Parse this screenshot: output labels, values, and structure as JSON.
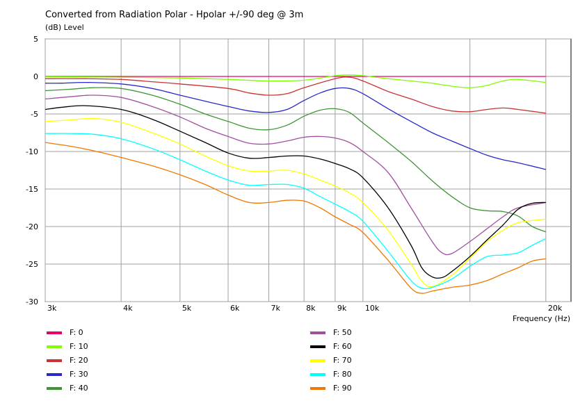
{
  "chart_data": {
    "type": "line",
    "title": "Converted from Radiation Polar - Hpolar +/-90 deg @ 3m",
    "ylabel": "(dB)  Level",
    "xlabel": "Frequency  (Hz)",
    "xscale": "log",
    "xlim": [
      3000,
      22000
    ],
    "ylim": [
      -30,
      5
    ],
    "grid": true,
    "legend_position": "bottom",
    "x_ticks": [
      {
        "value": 3000,
        "label": "3k"
      },
      {
        "value": 4000,
        "label": "4k"
      },
      {
        "value": 5000,
        "label": "5k"
      },
      {
        "value": 6000,
        "label": "6k"
      },
      {
        "value": 7000,
        "label": "7k"
      },
      {
        "value": 8000,
        "label": "8k"
      },
      {
        "value": 9000,
        "label": "9k"
      },
      {
        "value": 10000,
        "label": "10k"
      },
      {
        "value": 20000,
        "label": "20k"
      }
    ],
    "y_ticks": [
      {
        "value": 5,
        "label": "5"
      },
      {
        "value": 0,
        "label": "0"
      },
      {
        "value": -5,
        "label": "-5"
      },
      {
        "value": -10,
        "label": "-10"
      },
      {
        "value": -15,
        "label": "-15"
      },
      {
        "value": -20,
        "label": "-20"
      },
      {
        "value": -25,
        "label": "-25"
      },
      {
        "value": -30,
        "label": "-30"
      }
    ],
    "x_minor_gridlines": [
      15000
    ],
    "series": [
      {
        "name": "F: 0",
        "color": "#e6006e",
        "points": [
          [
            3000,
            0
          ],
          [
            20000,
            0
          ]
        ]
      },
      {
        "name": "F: 10",
        "color": "#80ff00",
        "points": [
          [
            3000,
            -0.05
          ],
          [
            4000,
            -0.1
          ],
          [
            5000,
            -0.2
          ],
          [
            6000,
            -0.4
          ],
          [
            7000,
            -0.6
          ],
          [
            8000,
            -0.5
          ],
          [
            9000,
            0.1
          ],
          [
            9500,
            0.2
          ],
          [
            10000,
            0.1
          ],
          [
            11000,
            -0.3
          ],
          [
            12000,
            -0.6
          ],
          [
            13000,
            -0.9
          ],
          [
            14000,
            -1.3
          ],
          [
            15000,
            -1.5
          ],
          [
            16000,
            -1.2
          ],
          [
            17000,
            -0.6
          ],
          [
            18000,
            -0.4
          ],
          [
            20000,
            -0.8
          ]
        ]
      },
      {
        "name": "F: 20",
        "color": "#c83232",
        "points": [
          [
            3000,
            -0.3
          ],
          [
            3500,
            -0.3
          ],
          [
            4000,
            -0.4
          ],
          [
            4500,
            -0.7
          ],
          [
            5000,
            -1.0
          ],
          [
            6000,
            -1.6
          ],
          [
            6500,
            -2.2
          ],
          [
            7000,
            -2.5
          ],
          [
            7500,
            -2.3
          ],
          [
            8000,
            -1.5
          ],
          [
            9000,
            -0.3
          ],
          [
            9500,
            -0.1
          ],
          [
            10000,
            -0.6
          ],
          [
            11000,
            -2.0
          ],
          [
            12000,
            -3.0
          ],
          [
            13000,
            -4.0
          ],
          [
            14000,
            -4.6
          ],
          [
            15000,
            -4.7
          ],
          [
            16000,
            -4.4
          ],
          [
            17000,
            -4.2
          ],
          [
            18000,
            -4.4
          ],
          [
            20000,
            -4.9
          ]
        ]
      },
      {
        "name": "F: 30",
        "color": "#2828c8",
        "points": [
          [
            3000,
            -0.9
          ],
          [
            3200,
            -0.9
          ],
          [
            3500,
            -0.8
          ],
          [
            4000,
            -1.0
          ],
          [
            4500,
            -1.6
          ],
          [
            5000,
            -2.5
          ],
          [
            5500,
            -3.3
          ],
          [
            6000,
            -4.0
          ],
          [
            6500,
            -4.6
          ],
          [
            7000,
            -4.8
          ],
          [
            7500,
            -4.4
          ],
          [
            8000,
            -3.2
          ],
          [
            8500,
            -2.2
          ],
          [
            9000,
            -1.6
          ],
          [
            9500,
            -1.6
          ],
          [
            10000,
            -2.3
          ],
          [
            11000,
            -4.3
          ],
          [
            12000,
            -6.0
          ],
          [
            13000,
            -7.5
          ],
          [
            14000,
            -8.6
          ],
          [
            15000,
            -9.6
          ],
          [
            16000,
            -10.5
          ],
          [
            17000,
            -11.1
          ],
          [
            18000,
            -11.5
          ],
          [
            20000,
            -12.4
          ]
        ]
      },
      {
        "name": "F: 40",
        "color": "#3c9632",
        "points": [
          [
            3000,
            -1.9
          ],
          [
            3300,
            -1.7
          ],
          [
            3600,
            -1.5
          ],
          [
            4000,
            -1.6
          ],
          [
            4500,
            -2.5
          ],
          [
            5000,
            -3.7
          ],
          [
            5500,
            -5.0
          ],
          [
            6000,
            -6.0
          ],
          [
            6500,
            -6.9
          ],
          [
            7000,
            -7.1
          ],
          [
            7500,
            -6.5
          ],
          [
            8000,
            -5.3
          ],
          [
            8500,
            -4.5
          ],
          [
            9000,
            -4.3
          ],
          [
            9500,
            -4.8
          ],
          [
            10000,
            -6.2
          ],
          [
            11000,
            -8.8
          ],
          [
            12000,
            -11.3
          ],
          [
            13000,
            -13.9
          ],
          [
            14000,
            -16.0
          ],
          [
            15000,
            -17.5
          ],
          [
            16000,
            -17.9
          ],
          [
            17000,
            -18.0
          ],
          [
            18000,
            -18.6
          ],
          [
            19000,
            -20.0
          ],
          [
            20000,
            -20.7
          ]
        ]
      },
      {
        "name": "F: 50",
        "color": "#a050a0",
        "points": [
          [
            3000,
            -3.0
          ],
          [
            3300,
            -2.7
          ],
          [
            3600,
            -2.5
          ],
          [
            4000,
            -2.8
          ],
          [
            4500,
            -4.0
          ],
          [
            5000,
            -5.4
          ],
          [
            5500,
            -6.9
          ],
          [
            6000,
            -8.0
          ],
          [
            6500,
            -8.9
          ],
          [
            7000,
            -9.0
          ],
          [
            7500,
            -8.6
          ],
          [
            8000,
            -8.1
          ],
          [
            8500,
            -8.0
          ],
          [
            9000,
            -8.2
          ],
          [
            9500,
            -8.8
          ],
          [
            10000,
            -10.0
          ],
          [
            11000,
            -12.8
          ],
          [
            12000,
            -17.5
          ],
          [
            13000,
            -22.0
          ],
          [
            13500,
            -23.5
          ],
          [
            14000,
            -23.6
          ],
          [
            15000,
            -22.0
          ],
          [
            16000,
            -20.3
          ],
          [
            17000,
            -18.7
          ],
          [
            18000,
            -17.5
          ],
          [
            20000,
            -16.8
          ]
        ]
      },
      {
        "name": "F: 60",
        "color": "#000000",
        "points": [
          [
            3000,
            -4.4
          ],
          [
            3200,
            -4.1
          ],
          [
            3500,
            -3.9
          ],
          [
            4000,
            -4.4
          ],
          [
            4500,
            -5.7
          ],
          [
            5000,
            -7.3
          ],
          [
            5500,
            -8.8
          ],
          [
            6000,
            -10.2
          ],
          [
            6500,
            -10.9
          ],
          [
            7000,
            -10.8
          ],
          [
            7500,
            -10.6
          ],
          [
            8000,
            -10.6
          ],
          [
            8500,
            -11.0
          ],
          [
            9000,
            -11.6
          ],
          [
            9500,
            -12.3
          ],
          [
            10000,
            -13.5
          ],
          [
            11000,
            -17.5
          ],
          [
            12000,
            -22.5
          ],
          [
            12500,
            -25.5
          ],
          [
            13000,
            -26.7
          ],
          [
            13500,
            -26.8
          ],
          [
            14000,
            -26.0
          ],
          [
            15000,
            -24.0
          ],
          [
            16000,
            -21.8
          ],
          [
            17000,
            -19.8
          ],
          [
            18000,
            -17.7
          ],
          [
            19000,
            -16.9
          ],
          [
            20000,
            -16.8
          ]
        ]
      },
      {
        "name": "F: 70",
        "color": "#ffff00",
        "points": [
          [
            3000,
            -6.0
          ],
          [
            3300,
            -5.8
          ],
          [
            3600,
            -5.6
          ],
          [
            4000,
            -6.1
          ],
          [
            4500,
            -7.5
          ],
          [
            5000,
            -9.0
          ],
          [
            5500,
            -10.6
          ],
          [
            6000,
            -11.9
          ],
          [
            6500,
            -12.6
          ],
          [
            7000,
            -12.6
          ],
          [
            7500,
            -12.5
          ],
          [
            8000,
            -13.0
          ],
          [
            8500,
            -13.8
          ],
          [
            9000,
            -14.6
          ],
          [
            9500,
            -15.5
          ],
          [
            10000,
            -16.8
          ],
          [
            11000,
            -20.5
          ],
          [
            12000,
            -25.0
          ],
          [
            12500,
            -27.3
          ],
          [
            13000,
            -28.0
          ],
          [
            14000,
            -26.5
          ],
          [
            15000,
            -24.2
          ],
          [
            16000,
            -22.0
          ],
          [
            17000,
            -20.5
          ],
          [
            18000,
            -19.5
          ],
          [
            20000,
            -19.0
          ]
        ]
      },
      {
        "name": "F: 80",
        "color": "#00ffff",
        "points": [
          [
            3000,
            -7.6
          ],
          [
            3300,
            -7.6
          ],
          [
            3600,
            -7.7
          ],
          [
            4000,
            -8.3
          ],
          [
            4500,
            -9.6
          ],
          [
            5000,
            -11.1
          ],
          [
            5500,
            -12.6
          ],
          [
            6000,
            -13.8
          ],
          [
            6500,
            -14.5
          ],
          [
            7000,
            -14.4
          ],
          [
            7500,
            -14.4
          ],
          [
            8000,
            -14.9
          ],
          [
            8500,
            -16.0
          ],
          [
            9000,
            -17.0
          ],
          [
            9500,
            -18.0
          ],
          [
            10000,
            -19.3
          ],
          [
            11000,
            -23.3
          ],
          [
            12000,
            -27.2
          ],
          [
            12500,
            -28.2
          ],
          [
            13000,
            -28.1
          ],
          [
            14000,
            -27.0
          ],
          [
            15000,
            -25.3
          ],
          [
            16000,
            -24.0
          ],
          [
            17000,
            -23.8
          ],
          [
            18000,
            -23.5
          ],
          [
            19000,
            -22.5
          ],
          [
            20000,
            -21.6
          ]
        ]
      },
      {
        "name": "F: 90",
        "color": "#f07800",
        "points": [
          [
            3000,
            -8.8
          ],
          [
            3300,
            -9.3
          ],
          [
            3600,
            -9.9
          ],
          [
            4000,
            -10.8
          ],
          [
            4500,
            -11.9
          ],
          [
            5000,
            -13.1
          ],
          [
            5500,
            -14.4
          ],
          [
            6000,
            -15.8
          ],
          [
            6500,
            -16.8
          ],
          [
            7000,
            -16.8
          ],
          [
            7500,
            -16.5
          ],
          [
            8000,
            -16.6
          ],
          [
            8500,
            -17.5
          ],
          [
            9000,
            -18.7
          ],
          [
            9500,
            -19.7
          ],
          [
            10000,
            -20.8
          ],
          [
            11000,
            -24.5
          ],
          [
            12000,
            -28.2
          ],
          [
            12500,
            -28.9
          ],
          [
            13000,
            -28.6
          ],
          [
            14000,
            -28.1
          ],
          [
            15000,
            -27.8
          ],
          [
            16000,
            -27.2
          ],
          [
            17000,
            -26.3
          ],
          [
            18000,
            -25.5
          ],
          [
            19000,
            -24.6
          ],
          [
            20000,
            -24.3
          ]
        ]
      }
    ]
  }
}
